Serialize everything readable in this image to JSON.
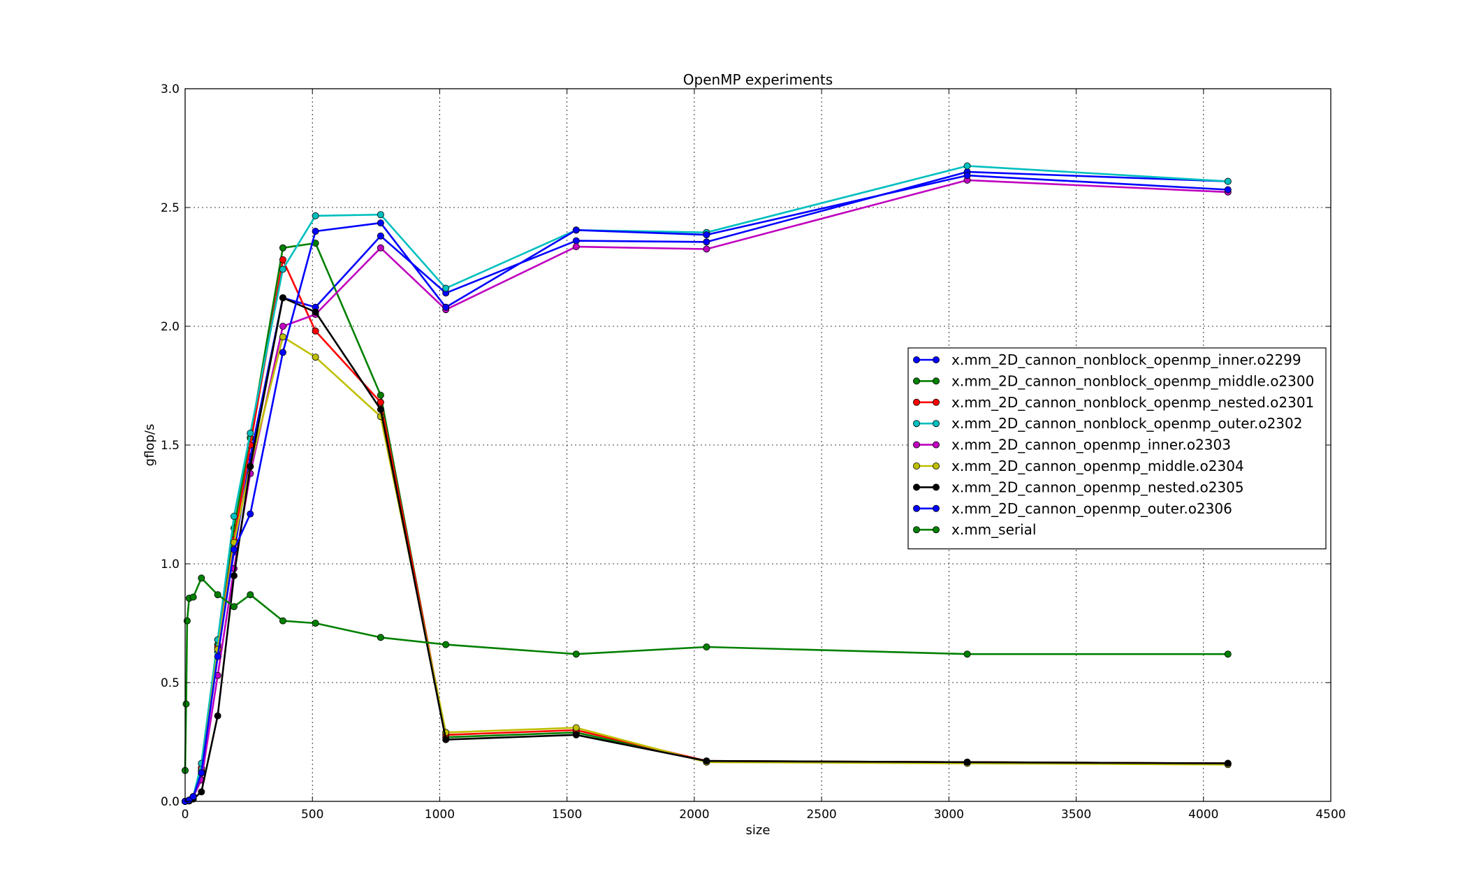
{
  "chart_data": {
    "type": "line",
    "title": "OpenMP experiments",
    "xlabel": "size",
    "ylabel": "gflop/s",
    "xlim": [
      0,
      4500
    ],
    "ylim": [
      0,
      3.0
    ],
    "xticks": [
      0,
      500,
      1000,
      1500,
      2000,
      2500,
      3000,
      3500,
      4000,
      4500
    ],
    "xtick_labels": [
      "0",
      "500",
      "1000",
      "1500",
      "2000",
      "2500",
      "3000",
      "3500",
      "4000",
      "4500"
    ],
    "yticks": [
      0,
      0.5,
      1.0,
      1.5,
      2.0,
      2.5,
      3.0
    ],
    "ytick_labels": [
      "0.0",
      "0.5",
      "1.0",
      "1.5",
      "2.0",
      "2.5",
      "3.0"
    ],
    "grid": true,
    "legend_position": "right",
    "series": [
      {
        "name": "x.mm_2D_cannon_nonblock_openmp_inner.o2299",
        "color": "#0000ff",
        "x": [
          0,
          16,
          32,
          64,
          128,
          192,
          256,
          384,
          512,
          768,
          1024,
          1536,
          2048,
          3072,
          4096
        ],
        "y": [
          0.0,
          0.005,
          0.02,
          0.13,
          0.63,
          1.05,
          1.45,
          2.12,
          2.08,
          2.38,
          2.14,
          2.36,
          2.355,
          2.65,
          2.61
        ]
      },
      {
        "name": "x.mm_2D_cannon_nonblock_openmp_middle.o2300",
        "color": "#008000",
        "x": [
          0,
          16,
          32,
          64,
          128,
          192,
          256,
          384,
          512,
          768,
          1024,
          1536,
          2048,
          3072,
          4096
        ],
        "y": [
          0.0,
          0.005,
          0.02,
          0.14,
          0.66,
          1.15,
          1.53,
          2.33,
          2.35,
          1.71,
          0.27,
          0.29,
          0.17,
          0.165,
          0.16
        ]
      },
      {
        "name": "x.mm_2D_cannon_nonblock_openmp_nested.o2301",
        "color": "#ff0000",
        "x": [
          0,
          16,
          32,
          64,
          128,
          192,
          256,
          384,
          512,
          768,
          1024,
          1536,
          2048,
          3072,
          4096
        ],
        "y": [
          0.0,
          0.005,
          0.02,
          0.14,
          0.65,
          1.1,
          1.5,
          2.28,
          1.98,
          1.68,
          0.28,
          0.3,
          0.17,
          0.165,
          0.16
        ]
      },
      {
        "name": "x.mm_2D_cannon_nonblock_openmp_outer.o2302",
        "color": "#00bfbf",
        "x": [
          0,
          16,
          32,
          64,
          128,
          192,
          256,
          384,
          512,
          768,
          1024,
          1536,
          2048,
          3072,
          4096
        ],
        "y": [
          0.0,
          0.005,
          0.02,
          0.16,
          0.68,
          1.2,
          1.55,
          2.24,
          2.465,
          2.47,
          2.16,
          2.405,
          2.395,
          2.675,
          2.61
        ]
      },
      {
        "name": "x.mm_2D_cannon_openmp_inner.o2303",
        "color": "#bf00bf",
        "x": [
          0,
          16,
          32,
          64,
          128,
          192,
          256,
          384,
          512,
          768,
          1024,
          1536,
          2048,
          3072,
          4096
        ],
        "y": [
          0.0,
          0.005,
          0.02,
          0.09,
          0.53,
          0.98,
          1.38,
          2.0,
          2.05,
          2.33,
          2.07,
          2.335,
          2.325,
          2.615,
          2.565
        ]
      },
      {
        "name": "x.mm_2D_cannon_openmp_middle.o2304",
        "color": "#bfbf00",
        "x": [
          0,
          16,
          32,
          64,
          128,
          192,
          256,
          384,
          512,
          768,
          1024,
          1536,
          2048,
          3072,
          4096
        ],
        "y": [
          0.0,
          0.005,
          0.02,
          0.12,
          0.64,
          1.09,
          1.41,
          1.955,
          1.87,
          1.62,
          0.29,
          0.31,
          0.165,
          0.16,
          0.155
        ]
      },
      {
        "name": "x.mm_2D_cannon_openmp_nested.o2305",
        "color": "#000000",
        "x": [
          0,
          16,
          32,
          64,
          128,
          192,
          256,
          384,
          512,
          768,
          1024,
          1536,
          2048,
          3072,
          4096
        ],
        "y": [
          0.0,
          0.002,
          0.01,
          0.04,
          0.36,
          0.95,
          1.41,
          2.12,
          2.06,
          1.65,
          0.26,
          0.28,
          0.17,
          0.165,
          0.16
        ]
      },
      {
        "name": "x.mm_2D_cannon_openmp_outer.o2306",
        "color": "#0000ff",
        "x": [
          0,
          16,
          32,
          64,
          128,
          192,
          256,
          384,
          512,
          768,
          1024,
          1536,
          2048,
          3072,
          4096
        ],
        "y": [
          0.0,
          0.005,
          0.02,
          0.12,
          0.61,
          1.06,
          1.21,
          1.89,
          2.4,
          2.435,
          2.08,
          2.405,
          2.385,
          2.635,
          2.575
        ]
      },
      {
        "name": "x.mm_serial",
        "color": "#008000",
        "x": [
          0,
          4,
          8,
          16,
          32,
          64,
          128,
          192,
          256,
          384,
          512,
          768,
          1024,
          1536,
          2048,
          3072,
          4096
        ],
        "y": [
          0.13,
          0.41,
          0.76,
          0.855,
          0.86,
          0.94,
          0.87,
          0.82,
          0.87,
          0.76,
          0.75,
          0.69,
          0.66,
          0.62,
          0.65,
          0.62,
          0.62
        ]
      }
    ]
  }
}
